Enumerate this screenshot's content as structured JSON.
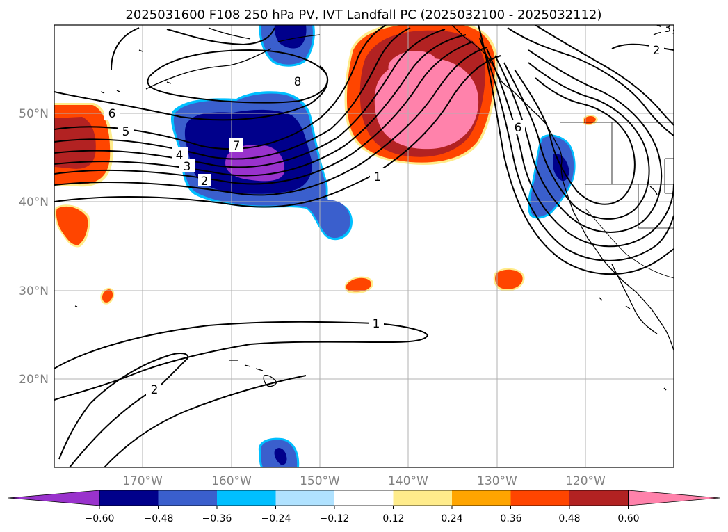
{
  "title": "2025031600 F108 250 hPa PV, IVT Landfall PC (2025032100 - 2025032112)",
  "lat_labels": [
    "50°N",
    "40°N",
    "30°N",
    "20°N"
  ],
  "lon_labels": [
    "170°W",
    "160°W",
    "150°W",
    "140°W",
    "130°W",
    "120°W"
  ],
  "colorbar": {
    "colors": [
      "#9932cc",
      "#00008b",
      "#3a5fcd",
      "#00bfff",
      "#b0e2ff",
      "#ffffff",
      "#ffec8b",
      "#ffa500",
      "#ff4500",
      "#b22222",
      "#ff82ab"
    ],
    "tick_labels": [
      "−0.60",
      "−0.48",
      "−0.36",
      "−0.24",
      "−0.12",
      "0.12",
      "0.24",
      "0.36",
      "0.48",
      "0.60"
    ],
    "extend": "both"
  },
  "contour_labels": [
    "8",
    "7",
    "6",
    "5",
    "4",
    "3",
    "2",
    "1",
    "6",
    "2",
    "1",
    "2",
    "3"
  ],
  "map_extent": {
    "lon_min": -180,
    "lon_max": -110,
    "lat_min": 10,
    "lat_max": 60
  },
  "pv_contour_levels": [
    1,
    2,
    3,
    4,
    5,
    6,
    7,
    8
  ]
}
